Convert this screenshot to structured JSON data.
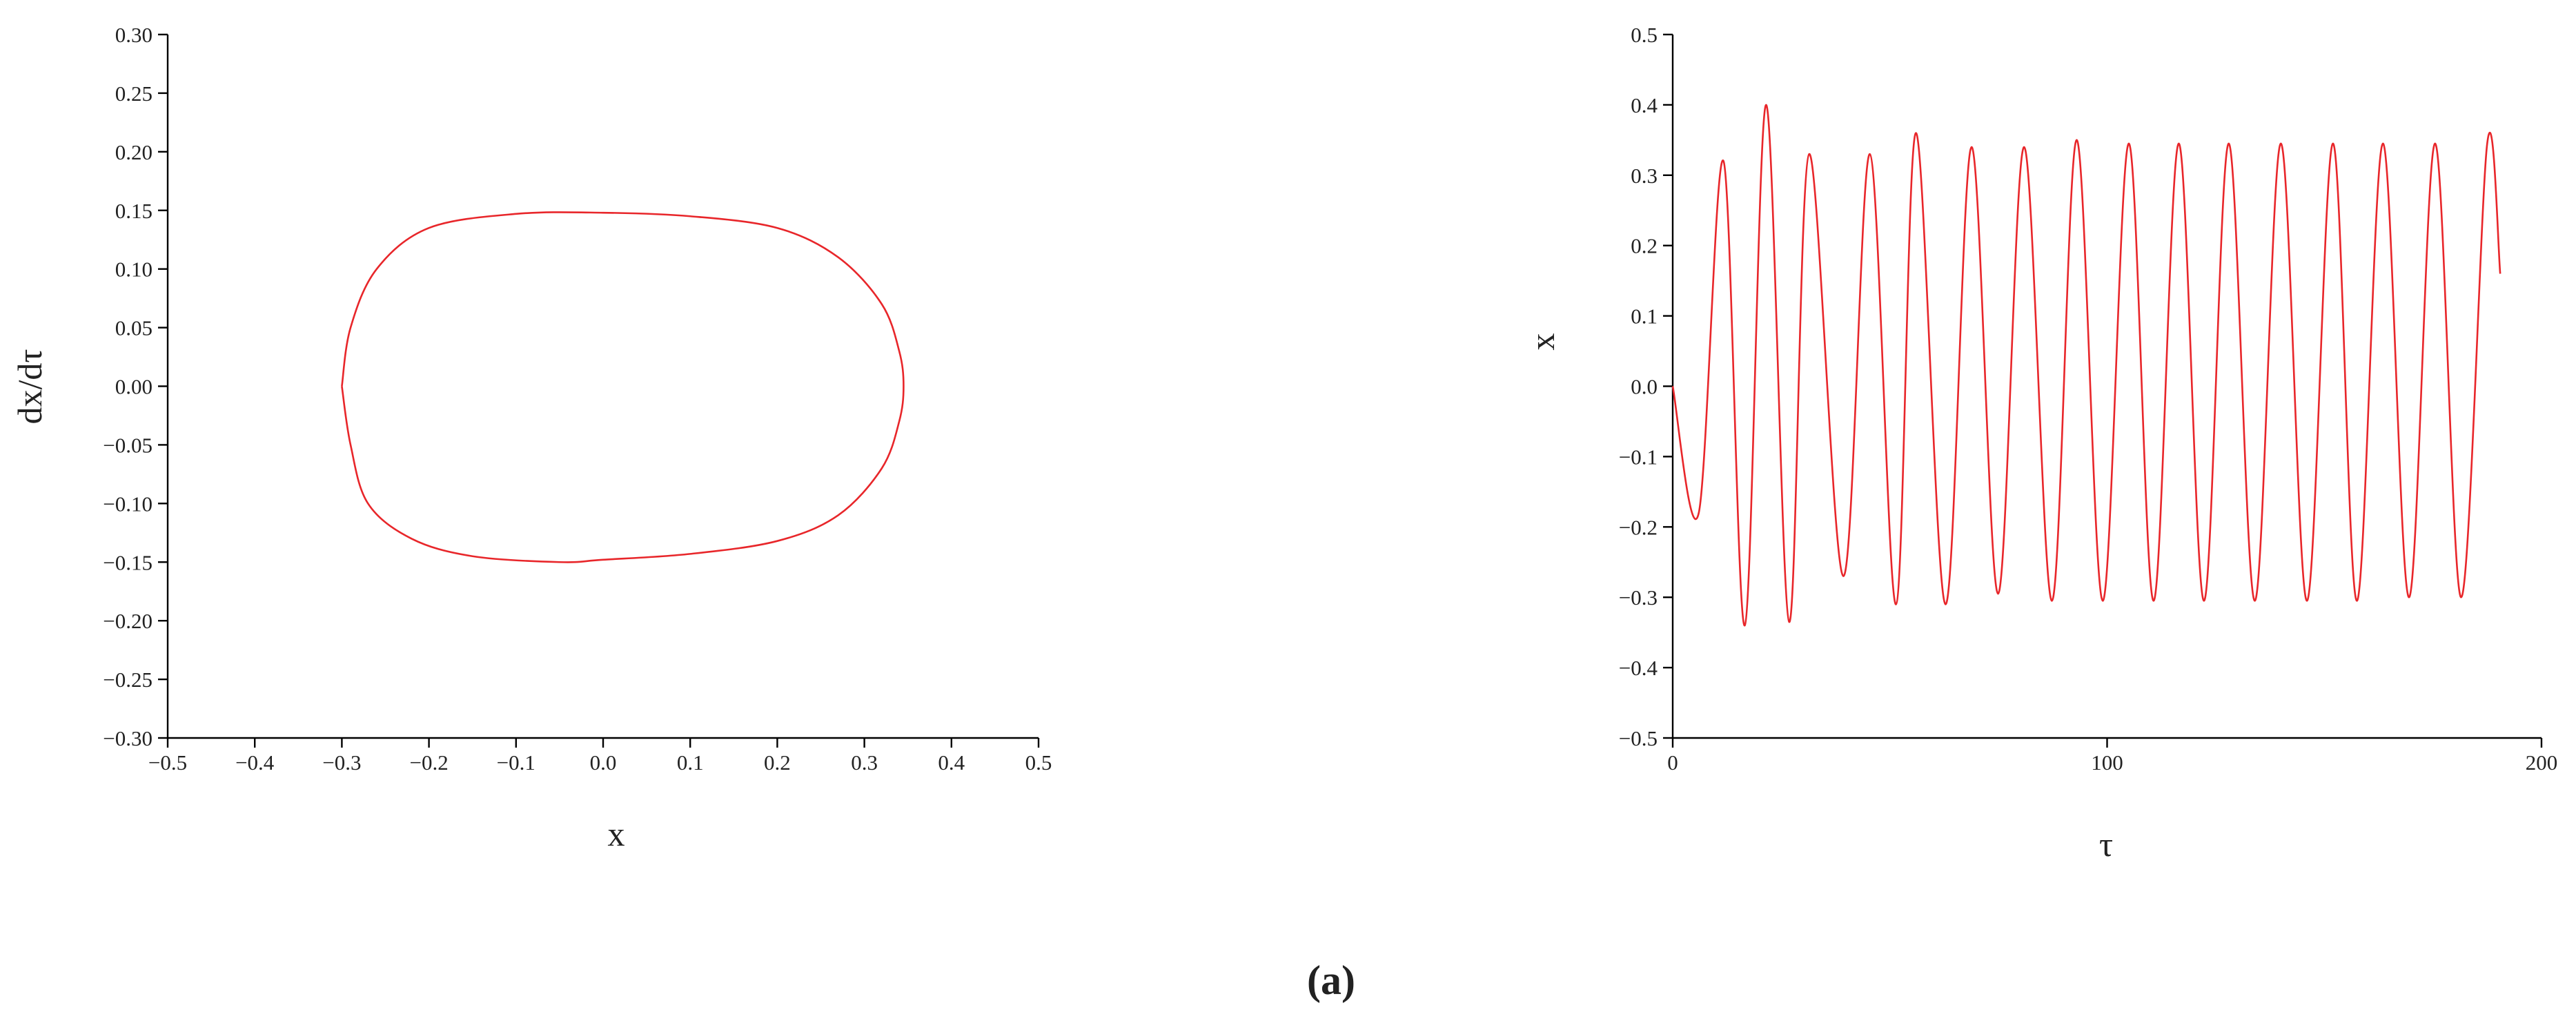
{
  "chart_data": [
    {
      "type": "line",
      "x_label": "x",
      "y_label": "dx/dτ",
      "x": [
        -0.3,
        -0.29,
        -0.26,
        -0.2,
        -0.1,
        0.0,
        0.1,
        0.2,
        0.27,
        0.32,
        0.34,
        0.345,
        0.34,
        0.32,
        0.27,
        0.2,
        0.1,
        0.0,
        -0.05,
        -0.15,
        -0.22,
        -0.27,
        -0.29,
        -0.3
      ],
      "series": [
        {
          "color": "#e8262a",
          "values": [
            0,
            0.05,
            0.1,
            0.135,
            0.147,
            0.148,
            0.145,
            0.135,
            0.11,
            0.07,
            0.03,
            0,
            -0.03,
            -0.07,
            -0.11,
            -0.132,
            -0.143,
            -0.148,
            -0.15,
            -0.145,
            -0.13,
            -0.1,
            -0.05,
            0
          ]
        }
      ],
      "xlim": [
        -0.5,
        0.5
      ],
      "xticks": [
        {
          "value": -0.5,
          "label": "−0.5"
        },
        {
          "value": -0.4,
          "label": "−0.4"
        },
        {
          "value": -0.3,
          "label": "−0.3"
        },
        {
          "value": -0.2,
          "label": "−0.2"
        },
        {
          "value": -0.1,
          "label": "−0.1"
        },
        {
          "value": 0,
          "label": "0.0"
        },
        0.1,
        0.2,
        0.3,
        0.4,
        0.5
      ],
      "ylim": [
        -0.3,
        0.3
      ],
      "yticks": [
        {
          "value": -0.3,
          "label": "−0.30"
        },
        {
          "value": -0.25,
          "label": "−0.25"
        },
        {
          "value": -0.2,
          "label": "−0.20"
        },
        {
          "value": -0.15,
          "label": "−0.15"
        },
        {
          "value": -0.1,
          "label": "−0.10"
        },
        {
          "value": -0.05,
          "label": "−0.05"
        },
        {
          "value": 0,
          "label": "0.00"
        },
        0.05,
        {
          "value": 0.1,
          "label": "0.10"
        },
        0.15,
        {
          "value": 0.2,
          "label": "0.20"
        },
        0.25,
        {
          "value": 0.3,
          "label": "0.30"
        }
      ]
    },
    {
      "type": "line",
      "x_label": "τ",
      "y_label": "x",
      "x": [
        0,
        6,
        11.7,
        16.6,
        21.5,
        26.8,
        31.4,
        39.3,
        45.4,
        51.4,
        56,
        62.8,
        68.8,
        74.9,
        80.9,
        87.3,
        93,
        99,
        105,
        110.7,
        116.5,
        122.3,
        128,
        134,
        140,
        146,
        152,
        157.5,
        163.5,
        169.5,
        175.5,
        181.5,
        187.5,
        190.5
      ],
      "series": [
        {
          "color": "#e8262a",
          "values": [
            0,
            -0.18,
            0.32,
            -0.34,
            0.4,
            -0.335,
            0.33,
            -0.27,
            0.33,
            -0.31,
            0.36,
            -0.31,
            0.34,
            -0.295,
            0.34,
            -0.305,
            0.35,
            -0.305,
            0.345,
            -0.305,
            0.345,
            -0.305,
            0.345,
            -0.305,
            0.345,
            -0.305,
            0.345,
            -0.305,
            0.345,
            -0.3,
            0.345,
            -0.3,
            0.345,
            0.16
          ]
        }
      ],
      "xlim": [
        0,
        200
      ],
      "xticks": [
        0,
        100,
        200
      ],
      "ylim": [
        -0.5,
        0.5
      ],
      "yticks": [
        {
          "value": -0.5,
          "label": "−0.5"
        },
        {
          "value": -0.4,
          "label": "−0.4"
        },
        {
          "value": -0.3,
          "label": "−0.3"
        },
        {
          "value": -0.2,
          "label": "−0.2"
        },
        {
          "value": -0.1,
          "label": "−0.1"
        },
        {
          "value": 0,
          "label": "0.0"
        },
        0.1,
        0.2,
        0.3,
        0.4,
        0.5
      ]
    }
  ],
  "caption": "(a)"
}
